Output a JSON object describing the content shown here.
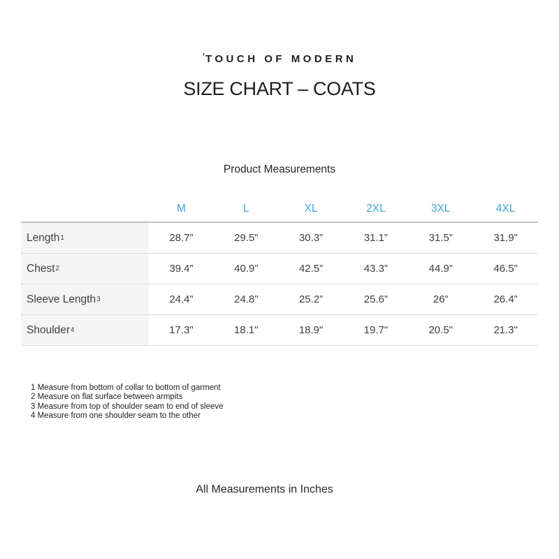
{
  "page": {
    "logo_mark": "ʼ",
    "logo": "TOUCH OF MODERN",
    "title": "SIZE CHART – COATS",
    "subtitle": "Product Measurements",
    "bottom_note": "All Measurements in Inches"
  },
  "table": {
    "columns": [
      "M",
      "L",
      "XL",
      "2XL",
      "3XL",
      "4XL"
    ],
    "rows": [
      {
        "label": "Length",
        "sup": "1",
        "values": [
          "28.7”",
          "29.5”",
          "30.3”",
          "31.1”",
          "31.5”",
          "31.9”"
        ]
      },
      {
        "label": "Chest",
        "sup": "2",
        "values": [
          "39.4”",
          "40.9”",
          "42.5”",
          "43.3”",
          "44.9”",
          "46.5”"
        ]
      },
      {
        "label": "Sleeve Length",
        "sup": "3",
        "values": [
          "24.4”",
          "24.8”",
          "25.2”",
          "25.6”",
          "26”",
          "26.4”"
        ]
      },
      {
        "label": "Shoulder",
        "sup": "4",
        "values": [
          "17.3\"",
          "18.1\"",
          "18.9\"",
          "19.7\"",
          "20.5\"",
          "21.3\""
        ]
      }
    ]
  },
  "footnotes": [
    "1 Measure from bottom of collar to bottom of garment",
    "2 Measure on flat surface between armpits",
    "3 Measure from top of shoulder seam to end of sleeve",
    "4 Measure from one shoulder seam to the other"
  ],
  "colors": {
    "accent_blue": "#41a5da",
    "label_column_bg": "#f5f5f5",
    "row_divider": "#dcdcdc",
    "header_rule": "#c2c2c2",
    "background": "#ffffff"
  },
  "chart_data": {
    "type": "table",
    "title": "SIZE CHART – COATS",
    "subtitle": "Product Measurements",
    "columns": [
      "M",
      "L",
      "XL",
      "2XL",
      "3XL",
      "4XL"
    ],
    "rows": [
      {
        "label": "Length",
        "values": [
          28.7,
          29.5,
          30.3,
          31.1,
          31.5,
          31.9
        ]
      },
      {
        "label": "Chest",
        "values": [
          39.4,
          40.9,
          42.5,
          43.3,
          44.9,
          46.5
        ]
      },
      {
        "label": "Sleeve Length",
        "values": [
          24.4,
          24.8,
          25.2,
          25.6,
          26,
          26.4
        ]
      },
      {
        "label": "Shoulder",
        "values": [
          17.3,
          18.1,
          18.9,
          19.7,
          20.5,
          21.3
        ]
      }
    ],
    "units": "inches",
    "footnote": "All Measurements in Inches"
  }
}
